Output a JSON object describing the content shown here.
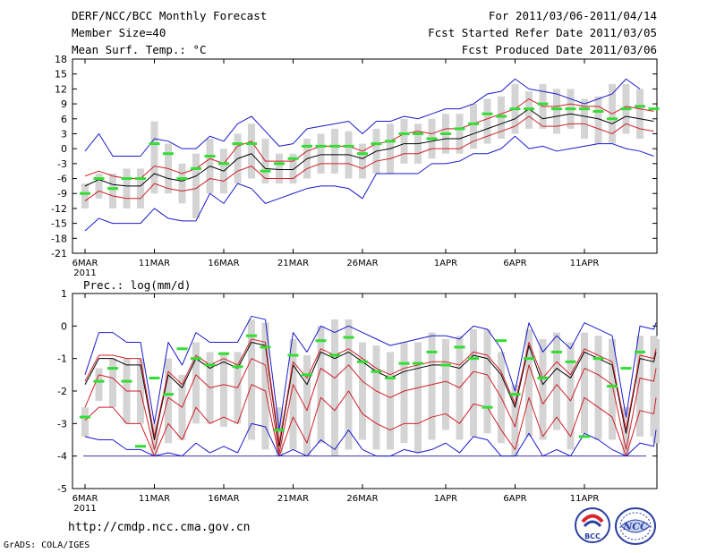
{
  "header": {
    "title": "DERF/NCC/BCC Monthly Forecast",
    "member_size": "Member Size=40",
    "variable": "Mean Surf. Temp.: °C",
    "period": "For 2011/03/06-2011/04/14",
    "started": "Fcst Started Refer Date 2011/03/05",
    "produced": "Fcst Produced Date 2011/03/06"
  },
  "footer": {
    "url": "http://cmdp.ncc.cma.gov.cn",
    "credit": "GrADS: COLA/IGES",
    "logo_bcc": "BCC",
    "logo_ncc": "NCC"
  },
  "colors": {
    "box": "#d4d4d4",
    "mean": "#000000",
    "inner_band": "#d0202a",
    "outer_band": "#1a1acc",
    "obs": "#33dd33",
    "baseline": "#3a3aa8"
  },
  "chart_data": [
    {
      "type": "line",
      "title": "Mean Surf. Temp.: °C",
      "xlabel": "",
      "ylabel": "°C",
      "ylim": [
        -21,
        18
      ],
      "yticks": [
        -21,
        -18,
        -15,
        -12,
        -9,
        -6,
        -3,
        0,
        3,
        6,
        9,
        12,
        15,
        18
      ],
      "year_label": "2011",
      "x_ticks": [
        {
          "day": 0,
          "label": "6MAR"
        },
        {
          "day": 5,
          "label": "11MAR"
        },
        {
          "day": 10,
          "label": "16MAR"
        },
        {
          "day": 15,
          "label": "21MAR"
        },
        {
          "day": 20,
          "label": "26MAR"
        },
        {
          "day": 26,
          "label": "1APR"
        },
        {
          "day": 31,
          "label": "6APR"
        },
        {
          "day": 36,
          "label": "11APR"
        }
      ],
      "days": 40,
      "series": [
        {
          "name": "mean",
          "values": [
            -7.5,
            -6.2,
            -7.2,
            -7.5,
            -7.5,
            -5,
            -6,
            -6.5,
            -5.5,
            -3.5,
            -4.5,
            -2,
            -1,
            -4,
            -4.2,
            -4.2,
            -2,
            -1.2,
            -1.2,
            -1.2,
            -2,
            -0.5,
            0,
            1,
            1,
            1.5,
            2,
            2,
            3,
            4,
            5,
            6,
            8,
            6,
            6.5,
            7,
            6.5,
            6,
            5,
            6.5,
            6,
            5.5
          ]
        },
        {
          "name": "inner-high",
          "values": [
            -5.5,
            -4.5,
            -5.5,
            -6,
            -6,
            -3.5,
            -4,
            -5,
            -4,
            -2,
            -3,
            0.5,
            1.5,
            -2.5,
            -2.5,
            -2.5,
            -0.5,
            0.5,
            0.5,
            0.5,
            -0.5,
            1,
            1.5,
            3,
            3.5,
            3,
            4,
            4,
            5,
            6,
            7,
            8,
            10,
            8.5,
            8.5,
            9,
            8.5,
            8.5,
            7,
            8.5,
            8,
            7.5
          ]
        },
        {
          "name": "inner-low",
          "values": [
            -10.5,
            -8.5,
            -9.5,
            -10,
            -10,
            -7,
            -8,
            -8.5,
            -8,
            -6,
            -6.5,
            -4.5,
            -3.5,
            -6,
            -6,
            -6,
            -4,
            -3,
            -3,
            -3,
            -4,
            -2.5,
            -2,
            -1,
            -1,
            0,
            0,
            0,
            1.5,
            2.5,
            3.5,
            4.5,
            6.5,
            4.5,
            4.5,
            5,
            5,
            4,
            3,
            5,
            4,
            3.5
          ]
        },
        {
          "name": "outer-high",
          "values": [
            -0.5,
            3,
            -1.5,
            -1.5,
            -1.5,
            2,
            1.5,
            0,
            0,
            2.5,
            1.5,
            5,
            6.5,
            3.5,
            0.5,
            1,
            4,
            4.5,
            5,
            5.5,
            3,
            5.5,
            5.5,
            6.5,
            6,
            7,
            8,
            8,
            9,
            11,
            11.5,
            14,
            12,
            11.5,
            11,
            10,
            9,
            10,
            11,
            14,
            12
          ]
        },
        {
          "name": "outer-low",
          "values": [
            -16.5,
            -14,
            -15,
            -15,
            -15,
            -12,
            -14,
            -14.5,
            -14.5,
            -9,
            -11,
            -7,
            -8,
            -11,
            -10,
            -9,
            -8,
            -7.5,
            -7.5,
            -8,
            -10,
            -5,
            -5,
            -5,
            -5,
            -3,
            -3,
            -2.5,
            -1,
            -1,
            0,
            2.5,
            0,
            0.5,
            -0.5,
            0,
            0.5,
            1,
            1,
            0,
            -0.5,
            -1.5
          ]
        }
      ],
      "boxes": [
        [
          -12,
          -7
        ],
        [
          -10,
          -5
        ],
        [
          -12,
          -5
        ],
        [
          -12,
          -4
        ],
        [
          -12,
          -4
        ],
        [
          -9,
          5.5
        ],
        [
          -9,
          1
        ],
        [
          -11,
          -3
        ],
        [
          -14,
          -1
        ],
        [
          -9,
          2
        ],
        [
          -9,
          0
        ],
        [
          -7,
          3
        ],
        [
          -6,
          5
        ],
        [
          -7,
          2
        ],
        [
          -7,
          -1
        ],
        [
          -7,
          -1
        ],
        [
          -6,
          2
        ],
        [
          -5,
          3
        ],
        [
          -5,
          4
        ],
        [
          -6,
          3.5
        ],
        [
          -6,
          1
        ],
        [
          -5,
          4
        ],
        [
          -5,
          5
        ],
        [
          -3,
          6
        ],
        [
          -3,
          5
        ],
        [
          -2,
          6
        ],
        [
          -1,
          7
        ],
        [
          -1,
          7
        ],
        [
          0,
          9
        ],
        [
          1,
          10
        ],
        [
          2,
          10.5
        ],
        [
          3,
          13
        ],
        [
          4,
          11.5
        ],
        [
          4,
          13
        ],
        [
          3,
          12
        ],
        [
          4,
          12
        ],
        [
          2,
          10
        ],
        [
          1,
          10.5
        ],
        [
          1,
          13
        ],
        [
          3,
          13
        ],
        [
          2,
          12
        ]
      ],
      "obs": [
        -9,
        -6,
        -8,
        -6,
        -6,
        1,
        -1,
        -6,
        -4,
        -1.5,
        -3,
        1,
        1,
        -4.5,
        -3,
        -2,
        0.5,
        0.5,
        0.5,
        0.5,
        -1,
        1,
        1.5,
        3,
        3,
        2,
        3,
        4,
        5,
        7,
        6.5,
        8,
        8,
        9,
        8,
        8,
        8,
        7.5,
        6,
        8,
        8.5,
        8
      ]
    },
    {
      "type": "line",
      "title": "Prec.: log(mm/d)",
      "xlabel": "",
      "ylabel": "log(mm/d)",
      "ylim": [
        -5,
        1
      ],
      "yticks": [
        -5,
        -4,
        -3,
        -2,
        -1,
        0,
        1
      ],
      "year_label": "2011",
      "x_ticks": [
        {
          "day": 0,
          "label": "6MAR"
        },
        {
          "day": 5,
          "label": "11MAR"
        },
        {
          "day": 10,
          "label": "16MAR"
        },
        {
          "day": 15,
          "label": "21MAR"
        },
        {
          "day": 20,
          "label": "26MAR"
        },
        {
          "day": 26,
          "label": "1APR"
        },
        {
          "day": 31,
          "label": "6APR"
        },
        {
          "day": 36,
          "label": "11APR"
        }
      ],
      "days": 40,
      "baseline": -4,
      "series": [
        {
          "name": "mean",
          "values": [
            -1.8,
            -1,
            -1,
            -1.2,
            -1.2,
            -3.5,
            -1.5,
            -1.9,
            -1,
            -1.3,
            -1.1,
            -1.3,
            -0.5,
            -0.6,
            -3.7,
            -1.2,
            -1.8,
            -0.8,
            -1,
            -0.8,
            -1.1,
            -1.4,
            -1.6,
            -1.4,
            -1.3,
            -1.2,
            -1.2,
            -1.3,
            -0.9,
            -1,
            -1.5,
            -2.5,
            -0.6,
            -1.8,
            -1.3,
            -1.6,
            -0.8,
            -1,
            -1.2,
            -3.3,
            -1,
            -1.1,
            -0.8
          ]
        },
        {
          "name": "inner-high",
          "values": [
            -1.7,
            -0.9,
            -0.9,
            -1,
            -1,
            -3.4,
            -1.4,
            -1.8,
            -0.9,
            -1.2,
            -1,
            -1.2,
            -0.4,
            -0.5,
            -3.6,
            -1.1,
            -1.6,
            -0.7,
            -0.9,
            -0.7,
            -1,
            -1.3,
            -1.5,
            -1.3,
            -1.2,
            -1.1,
            -1.1,
            -1.2,
            -0.8,
            -0.9,
            -1.4,
            -2.4,
            -0.5,
            -1.6,
            -1.1,
            -1.5,
            -0.7,
            -0.9,
            -1.1,
            -3.2,
            -0.9,
            -1,
            -0.7
          ]
        },
        {
          "name": "inner-mid",
          "values": [
            -2.5,
            -1.5,
            -1.6,
            -2,
            -2,
            -3.8,
            -2.2,
            -2.5,
            -1.5,
            -1.9,
            -1.8,
            -1.9,
            -1,
            -1.2,
            -3.9,
            -1.8,
            -2.6,
            -1.3,
            -1.6,
            -1.2,
            -1.7,
            -2,
            -2.2,
            -2,
            -1.9,
            -1.8,
            -1.7,
            -1.9,
            -1.4,
            -1.5,
            -2.2,
            -3.1,
            -1.2,
            -2.4,
            -1.8,
            -2.3,
            -1.3,
            -1.5,
            -1.8,
            -3.8,
            -1.6,
            -1.7,
            -1.3
          ]
        },
        {
          "name": "inner-low",
          "values": [
            -2.9,
            -2.5,
            -2.5,
            -3,
            -3,
            -4,
            -3,
            -3.5,
            -2.5,
            -3,
            -2.8,
            -3,
            -1.8,
            -2,
            -4,
            -2.8,
            -3.6,
            -2.2,
            -2.6,
            -2,
            -2.7,
            -3,
            -3.2,
            -3,
            -3,
            -2.8,
            -2.7,
            -3,
            -2.4,
            -2.5,
            -3.2,
            -3.8,
            -2.2,
            -3.4,
            -2.8,
            -3.4,
            -2.2,
            -2.5,
            -2.8,
            -4,
            -2.6,
            -2.7,
            -2.2
          ]
        },
        {
          "name": "outer-high",
          "values": [
            -1.5,
            -0.2,
            -0.2,
            -0.5,
            -0.5,
            -3,
            -0.5,
            -1.2,
            -0.2,
            -0.5,
            -0.5,
            -0.5,
            0.3,
            0.2,
            -3.2,
            -0.2,
            -0.8,
            0,
            -0.2,
            0,
            -0.2,
            -0.4,
            -0.6,
            -0.5,
            -0.4,
            -0.3,
            -0.3,
            -0.4,
            0,
            -0.1,
            -0.7,
            -2,
            0.1,
            -0.8,
            -0.3,
            -0.7,
            0.1,
            -0.1,
            -0.3,
            -2.8,
            0,
            -0.1,
            0.1
          ]
        },
        {
          "name": "outer-low",
          "values": [
            -3.4,
            -3.5,
            -3.5,
            -3.8,
            -3.8,
            -4,
            -3.9,
            -4,
            -3.6,
            -3.9,
            -3.7,
            -3.9,
            -3,
            -3.1,
            -4,
            -3.8,
            -4,
            -3.5,
            -3.8,
            -3.2,
            -3.8,
            -4,
            -4,
            -3.8,
            -3.9,
            -3.8,
            -3.6,
            -3.9,
            -3.4,
            -3.5,
            -4,
            -4,
            -3.3,
            -4,
            -3.8,
            -4,
            -3.3,
            -3.5,
            -3.8,
            -4,
            -3.6,
            -3.7,
            -3.2
          ]
        }
      ],
      "boxes": [
        [
          -3.4,
          -2.5
        ],
        [
          -2.3,
          -1.3
        ],
        [
          -2.5,
          -1
        ],
        [
          -3,
          -1
        ],
        [
          -3,
          -1
        ],
        [
          -4,
          -3
        ],
        [
          -3.6,
          -1
        ],
        [
          -3.5,
          -1.5
        ],
        [
          -3,
          -0.5
        ],
        [
          -3,
          -0.8
        ],
        [
          -3.1,
          -0.8
        ],
        [
          -3,
          -0.8
        ],
        [
          -3.5,
          0.2
        ],
        [
          -3.8,
          0.1
        ],
        [
          -4,
          -2.5
        ],
        [
          -3.8,
          -0.4
        ],
        [
          -4,
          -0.9
        ],
        [
          -3.6,
          0
        ],
        [
          -4,
          0.2
        ],
        [
          -3.8,
          0.2
        ],
        [
          -3.5,
          -0.5
        ],
        [
          -3.8,
          -0.6
        ],
        [
          -3.8,
          -0.8
        ],
        [
          -3.6,
          -0.5
        ],
        [
          -3.9,
          -0.5
        ],
        [
          -3.5,
          -0.2
        ],
        [
          -3.2,
          -0.4
        ],
        [
          -3.5,
          -0.3
        ],
        [
          -3.4,
          -0.1
        ],
        [
          -3.3,
          -0.1
        ],
        [
          -3.6,
          -0.8
        ],
        [
          -4,
          -1.8
        ],
        [
          -3.4,
          -0.1
        ],
        [
          -3.5,
          -0.4
        ],
        [
          -3.2,
          -0.2
        ],
        [
          -3.8,
          -0.5
        ],
        [
          -3.3,
          -0.2
        ],
        [
          -3.5,
          -0.3
        ],
        [
          -3.5,
          -0.4
        ],
        [
          -4,
          -2.5
        ],
        [
          -3.4,
          -0.3
        ],
        [
          -3.4,
          -0.3
        ],
        [
          -3.6,
          -0.4
        ]
      ],
      "obs": [
        -2.8,
        -1.7,
        -1.3,
        -1.7,
        -3.7,
        -1.6,
        -2.1,
        -0.7,
        -1,
        -1.2,
        -0.85,
        -1.25,
        -0.3,
        -0.65,
        -3.2,
        -0.9,
        -1.5,
        -0.45,
        -0.9,
        -0.35,
        -1.1,
        -1.4,
        -1.6,
        -1.15,
        -1.15,
        -0.8,
        -1.2,
        -0.65,
        -1,
        -2.5,
        -0.45,
        -2.1,
        -1,
        -1.6,
        -0.8,
        -1.1,
        -3.4,
        -1,
        -1.85,
        -1.3,
        -0.8
      ]
    }
  ]
}
